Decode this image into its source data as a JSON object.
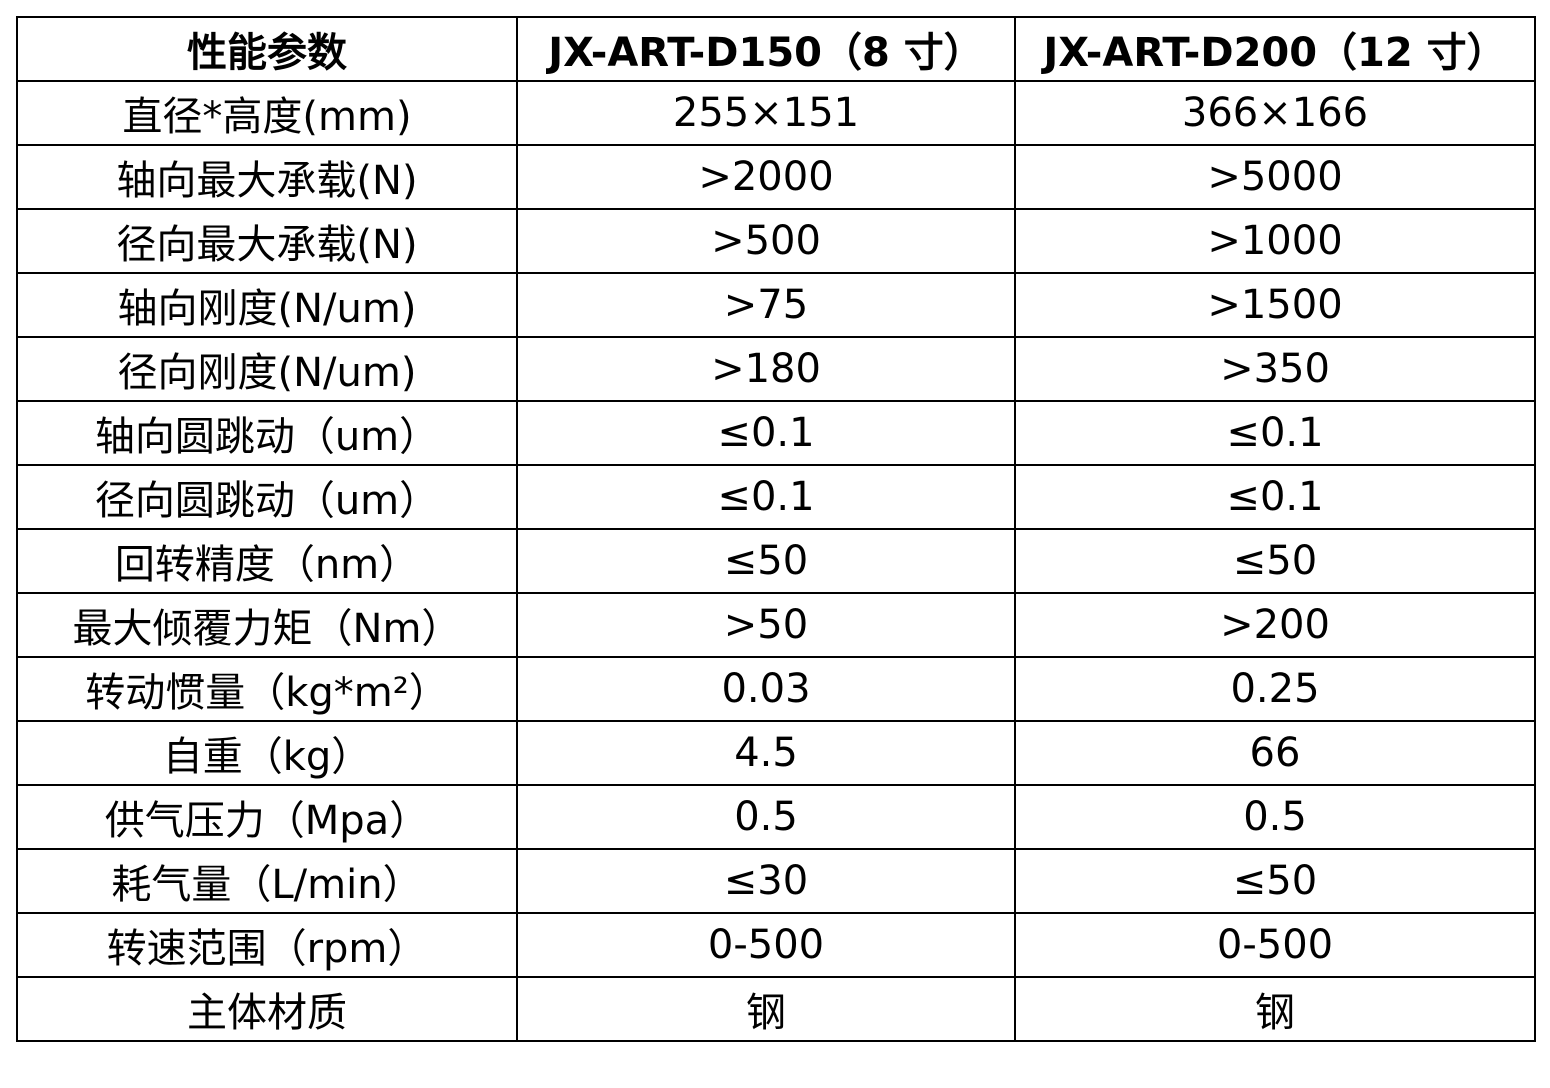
{
  "table": {
    "header": [
      "性能参数",
      "JX-ART-D150（8 寸）",
      "JX-ART-D200（12 寸）"
    ],
    "rows": [
      [
        "直径*高度(mm)",
        "255×151",
        "366×166"
      ],
      [
        "轴向最大承载(N)",
        ">2000",
        ">5000"
      ],
      [
        "径向最大承载(N)",
        ">500",
        ">1000"
      ],
      [
        "轴向刚度(N/um)",
        ">75",
        ">1500"
      ],
      [
        "径向刚度(N/um)",
        ">180",
        ">350"
      ],
      [
        "轴向圆跳动（um）",
        "≤0.1",
        "≤0.1"
      ],
      [
        "径向圆跳动（um）",
        "≤0.1",
        "≤0.1"
      ],
      [
        "回转精度（nm）",
        "≤50",
        "≤50"
      ],
      [
        "最大倾覆力矩（Nm）",
        ">50",
        ">200"
      ],
      [
        "转动惯量（kg*m²）",
        "0.03",
        "0.25"
      ],
      [
        "自重（kg）",
        "4.5",
        "66"
      ],
      [
        "供气压力（Mpa）",
        "0.5",
        "0.5"
      ],
      [
        "耗气量（L/min）",
        "≤30",
        "≤50"
      ],
      [
        "转速范围（rpm）",
        "0-500",
        "0-500"
      ],
      [
        "主体材质",
        "钢",
        "钢"
      ]
    ]
  }
}
